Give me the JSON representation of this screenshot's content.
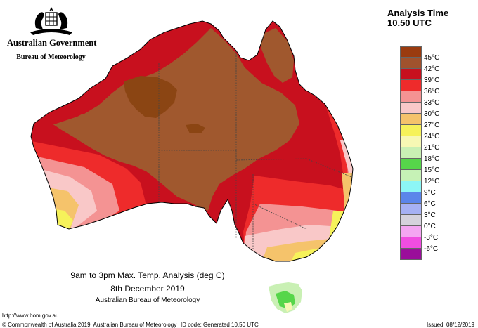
{
  "branding": {
    "government": "Australian Government",
    "bureau": "Bureau of Meteorology"
  },
  "analysis_time": {
    "line1": "Analysis Time",
    "line2": "10.50 UTC"
  },
  "legend": [
    {
      "label": "45°C",
      "color": "#9a3b0f"
    },
    {
      "label": "42°C",
      "color": "#a0522d"
    },
    {
      "label": "39°C",
      "color": "#c8101e"
    },
    {
      "label": "36°C",
      "color": "#ee2b2b"
    },
    {
      "label": "33°C",
      "color": "#f49393"
    },
    {
      "label": "30°C",
      "color": "#f9c8c8"
    },
    {
      "label": "27°C",
      "color": "#f5c36b"
    },
    {
      "label": "24°C",
      "color": "#f6f25a"
    },
    {
      "label": "21°C",
      "color": "#f7f8b4"
    },
    {
      "label": "18°C",
      "color": "#c9f0b4"
    },
    {
      "label": "15°C",
      "color": "#56d64a"
    },
    {
      "label": "12°C",
      "color": "#c6f2b6"
    },
    {
      "label": "9°C",
      "color": "#8cf6f6"
    },
    {
      "label": "6°C",
      "color": "#5b85ea"
    },
    {
      "label": "3°C",
      "color": "#a6b1f4"
    },
    {
      "label": "0°C",
      "color": "#d5d2dc"
    },
    {
      "label": "-3°C",
      "color": "#f4a6f2"
    },
    {
      "label": "-6°C",
      "color": "#f04de0"
    }
  ],
  "legend_extra_swatch": "#9a0e9a",
  "caption": {
    "title": "9am to 3pm Max. Temp. Analysis (deg C)",
    "date": "8th December 2019",
    "agency": "Australian Bureau of Meteorology"
  },
  "footer": {
    "url": "http://www.bom.gov.au",
    "copyright": "© Commonwealth of Australia 2019, Australian Bureau of Meteorology",
    "id_code": "ID code: Generated 10.50 UTC",
    "issued": "Issued: 08/12/2019"
  },
  "colors": {
    "c45": "#8b4513",
    "c42": "#a0582e",
    "c39": "#c8101e",
    "c36": "#ee2b2b",
    "c33": "#f49393",
    "c30": "#f9c8c8",
    "c27": "#f5c36b",
    "c24": "#f6f25a",
    "c21": "#f7f8b4",
    "c18": "#c9f0b4",
    "c15": "#56d64a"
  }
}
